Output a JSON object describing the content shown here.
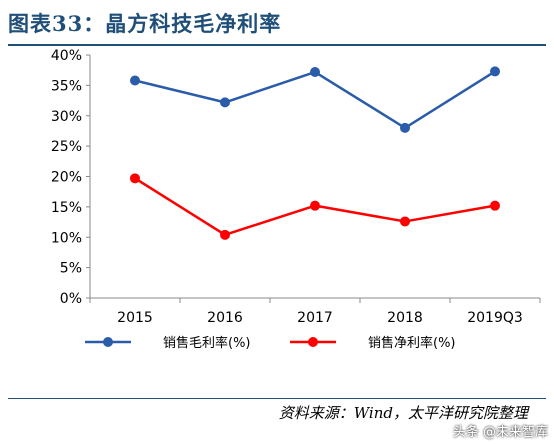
{
  "figure": {
    "title": "图表33：晶方科技毛净利率",
    "source": "资料来源：Wind，太平洋研究院整理",
    "watermark": "头条 @未来智库"
  },
  "chart_data": {
    "type": "line",
    "categories": [
      "2015",
      "2016",
      "2017",
      "2018",
      "2019Q3"
    ],
    "series": [
      {
        "name": "销售毛利率(%)",
        "color": "#2a5caa",
        "values": [
          35.8,
          32.2,
          37.2,
          28.0,
          37.3
        ]
      },
      {
        "name": "销售净利率(%)",
        "color": "#ff0000",
        "values": [
          19.7,
          10.4,
          15.2,
          12.6,
          15.2
        ]
      }
    ],
    "ylim": [
      0,
      40
    ],
    "yticks": [
      "0%",
      "5%",
      "10%",
      "15%",
      "20%",
      "25%",
      "30%",
      "35%",
      "40%"
    ],
    "ytick_values": [
      0,
      5,
      10,
      15,
      20,
      25,
      30,
      35,
      40
    ],
    "grid": false,
    "legend_position": "bottom"
  }
}
